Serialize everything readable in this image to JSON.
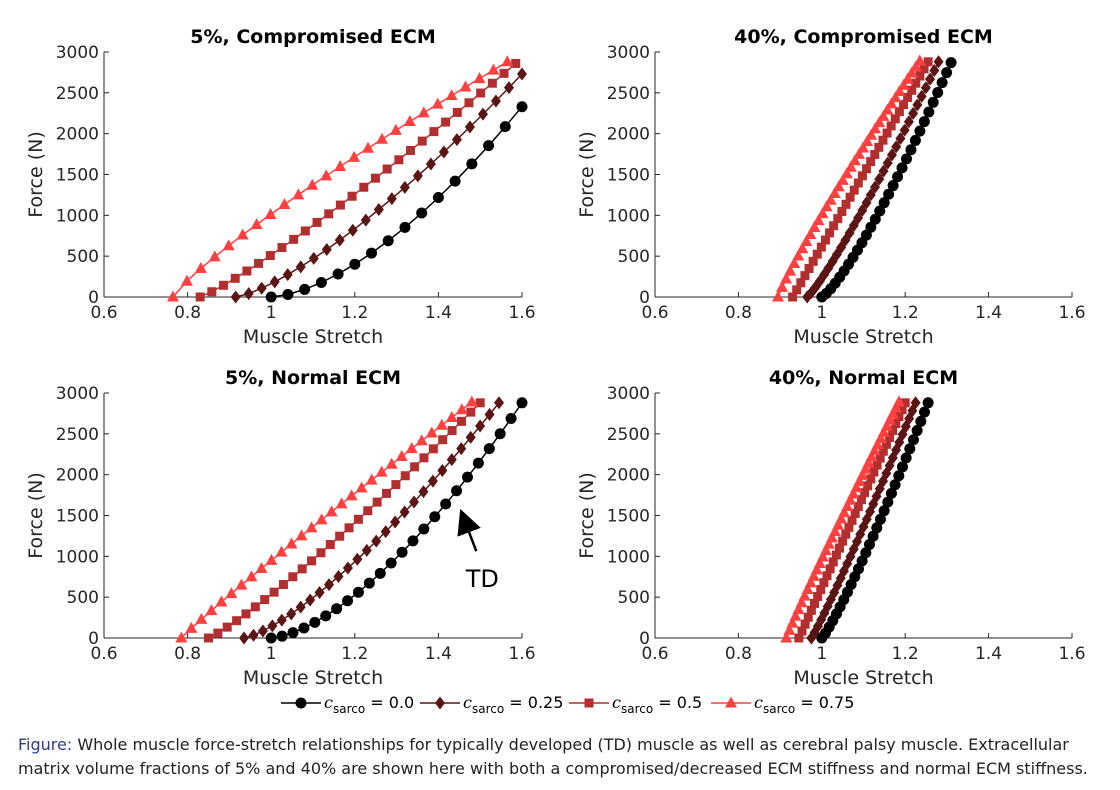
{
  "colors": {
    "c0": "#000000",
    "c025": "#5a1414",
    "c05": "#b32f2f",
    "c075": "#ff4040",
    "axis": "#262626",
    "caption_label": "#2e3b8c"
  },
  "legend": {
    "entries": [
      {
        "symbol": "c",
        "subscript": "sarco",
        "value": " = 0.0",
        "marker": "circle",
        "color": "#000000"
      },
      {
        "symbol": "c",
        "subscript": "sarco",
        "value": " = 0.25",
        "marker": "diamond",
        "color": "#5a1414"
      },
      {
        "symbol": "c",
        "subscript": "sarco",
        "value": " = 0.5",
        "marker": "square",
        "color": "#b32f2f"
      },
      {
        "symbol": "c",
        "subscript": "sarco",
        "value": " = 0.75",
        "marker": "triangle",
        "color": "#ff4040"
      }
    ]
  },
  "caption": {
    "label": "Figure:",
    "text": " Whole muscle force-stretch relationships for typically developed (TD) muscle as well as cerebral palsy muscle. Extracellular matrix volume fractions of 5% and 40% are shown here with both a compromised/decreased ECM stiffness and normal ECM stiffness."
  },
  "chart_data": [
    {
      "type": "line",
      "title": "5%, Compromised ECM",
      "xlabel": "Muscle Stretch",
      "ylabel": "Force (N)",
      "xlim": [
        0.6,
        1.6
      ],
      "ylim": [
        0,
        3000
      ],
      "xticks": [
        "0.6",
        "0.8",
        "1",
        "1.2",
        "1.4",
        "1.6"
      ],
      "yticks": [
        "0",
        "500",
        "1000",
        "1500",
        "2000",
        "2500",
        "3000"
      ],
      "grid": false,
      "series": [
        {
          "name": "c_sarco = 0.0",
          "start": [
            1.0,
            0
          ],
          "end": [
            1.6,
            2330
          ],
          "exp": 1.6,
          "points": 16
        },
        {
          "name": "c_sarco = 0.25",
          "start": [
            0.915,
            0
          ],
          "end": [
            1.6,
            2730
          ],
          "exp": 1.35,
          "points": 23
        },
        {
          "name": "c_sarco = 0.5",
          "start": [
            0.83,
            0
          ],
          "end": [
            1.585,
            2860
          ],
          "exp": 1.15,
          "points": 28
        },
        {
          "name": "c_sarco = 0.75",
          "start": [
            0.765,
            0
          ],
          "end": [
            1.565,
            2880
          ],
          "exp": 0.85,
          "points": 25
        }
      ]
    },
    {
      "type": "line",
      "title": "40%, Compromised ECM",
      "xlabel": "Muscle Stretch",
      "ylabel": "Force (N)",
      "xlim": [
        0.6,
        1.6
      ],
      "ylim": [
        0,
        3000
      ],
      "xticks": [
        "0.6",
        "0.8",
        "1",
        "1.2",
        "1.4",
        "1.6"
      ],
      "yticks": [
        "0",
        "500",
        "1000",
        "1500",
        "2000",
        "2500",
        "3000"
      ],
      "grid": false,
      "series": [
        {
          "name": "c_sarco = 0.0",
          "start": [
            1.0,
            0
          ],
          "end": [
            1.31,
            2870
          ],
          "exp": 1.25,
          "points": 30
        },
        {
          "name": "c_sarco = 0.25",
          "start": [
            0.965,
            0
          ],
          "end": [
            1.28,
            2880
          ],
          "exp": 1.15,
          "points": 32
        },
        {
          "name": "c_sarco = 0.5",
          "start": [
            0.93,
            0
          ],
          "end": [
            1.255,
            2880
          ],
          "exp": 1.0,
          "points": 34
        },
        {
          "name": "c_sarco = 0.75",
          "start": [
            0.895,
            0
          ],
          "end": [
            1.235,
            2890
          ],
          "exp": 0.9,
          "points": 36
        }
      ]
    },
    {
      "type": "line",
      "title": "5%, Normal ECM",
      "xlabel": "Muscle Stretch",
      "ylabel": "Force (N)",
      "xlim": [
        0.6,
        1.6
      ],
      "ylim": [
        0,
        3000
      ],
      "xticks": [
        "0.6",
        "0.8",
        "1",
        "1.2",
        "1.4",
        "1.6"
      ],
      "yticks": [
        "0",
        "500",
        "1000",
        "1500",
        "2000",
        "2500",
        "3000"
      ],
      "grid": false,
      "annotation": {
        "text": "TD",
        "point": [
          1.44,
          1650
        ],
        "text_at": [
          1.505,
          720
        ]
      },
      "series": [
        {
          "name": "c_sarco = 0.0",
          "start": [
            1.0,
            0
          ],
          "end": [
            1.6,
            2880
          ],
          "exp": 1.55,
          "points": 24
        },
        {
          "name": "c_sarco = 0.25",
          "start": [
            0.935,
            0
          ],
          "end": [
            1.545,
            2880
          ],
          "exp": 1.35,
          "points": 28
        },
        {
          "name": "c_sarco = 0.5",
          "start": [
            0.85,
            0
          ],
          "end": [
            1.5,
            2880
          ],
          "exp": 1.15,
          "points": 30
        },
        {
          "name": "c_sarco = 0.75",
          "start": [
            0.785,
            0
          ],
          "end": [
            1.48,
            2890
          ],
          "exp": 0.95,
          "points": 30
        }
      ]
    },
    {
      "type": "line",
      "title": "40%, Normal ECM",
      "xlabel": "Muscle Stretch",
      "ylabel": "Force (N)",
      "xlim": [
        0.6,
        1.6
      ],
      "ylim": [
        0,
        3000
      ],
      "xticks": [
        "0.6",
        "0.8",
        "1",
        "1.2",
        "1.4",
        "1.6"
      ],
      "yticks": [
        "0",
        "500",
        "1000",
        "1500",
        "2000",
        "2500",
        "3000"
      ],
      "grid": false,
      "series": [
        {
          "name": "c_sarco = 0.0",
          "start": [
            1.0,
            0
          ],
          "end": [
            1.255,
            2880
          ],
          "exp": 1.15,
          "points": 30
        },
        {
          "name": "c_sarco = 0.25",
          "start": [
            0.975,
            0
          ],
          "end": [
            1.225,
            2880
          ],
          "exp": 1.08,
          "points": 33
        },
        {
          "name": "c_sarco = 0.5",
          "start": [
            0.945,
            0
          ],
          "end": [
            1.2,
            2880
          ],
          "exp": 1.0,
          "points": 35
        },
        {
          "name": "c_sarco = 0.75",
          "start": [
            0.915,
            0
          ],
          "end": [
            1.185,
            2890
          ],
          "exp": 0.95,
          "points": 38
        }
      ]
    }
  ]
}
